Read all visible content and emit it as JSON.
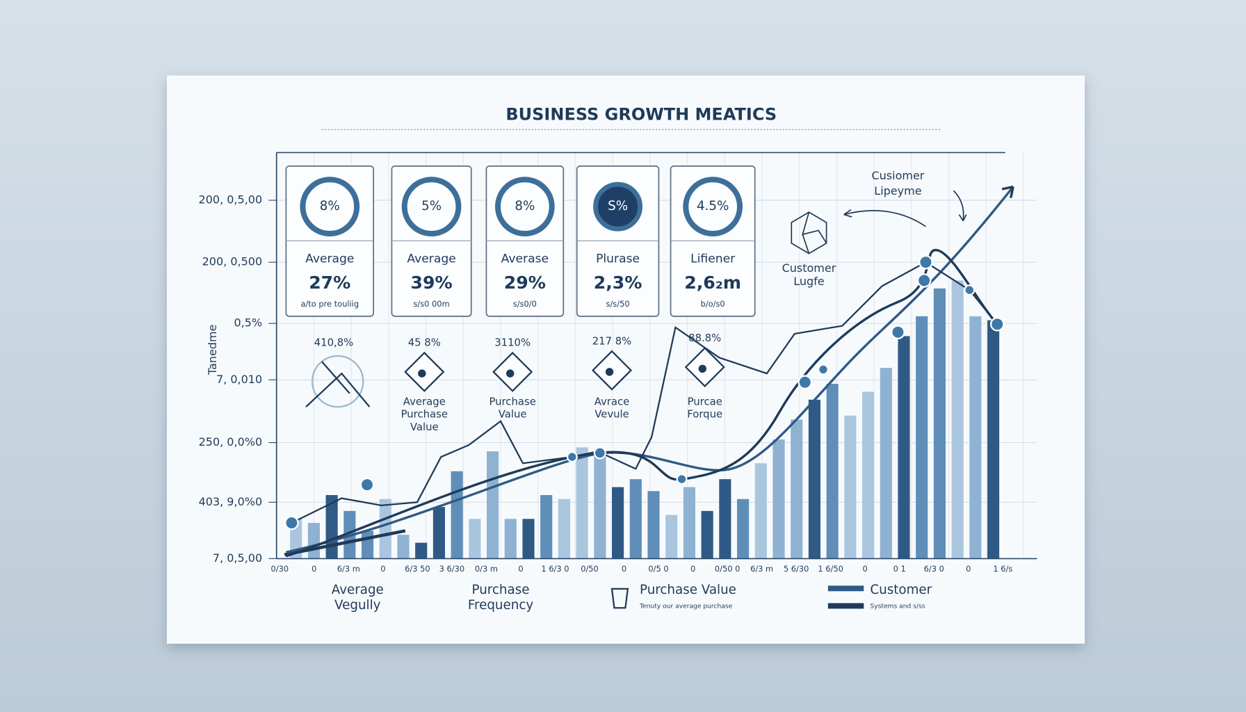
{
  "header": {
    "title": "BUSINESS GROWTH MEATICS"
  },
  "y_axis": {
    "title": "Tanedme",
    "ticks": [
      "200, 0,5,00",
      "200, 0,500",
      "0,5%",
      "7, 0,010",
      "250, 0,0%0",
      "403, 9,0%0",
      "7, 0,5,00"
    ]
  },
  "cards": [
    {
      "ring": "8%",
      "label": "Average",
      "value": "27%",
      "note": "a/to pre touliig"
    },
    {
      "ring": "5%",
      "label": "Average",
      "value": "39%",
      "note": "s/s0 00m"
    },
    {
      "ring": "8%",
      "label": "Averase",
      "value": "29%",
      "note": "s/s0/0"
    },
    {
      "ring": "S%",
      "label": "Plurase",
      "value": "2,3%",
      "note": "s/s/50"
    },
    {
      "ring": "4.5%",
      "label": "Lifiener",
      "value": "2,6₂m",
      "note": "b/o/s0"
    }
  ],
  "callouts": [
    {
      "value": "410,8%"
    },
    {
      "value": "45 8%",
      "lines": [
        "Average",
        "Purchase",
        "Value"
      ]
    },
    {
      "value": "3110%",
      "lines": [
        "Purchase",
        "Value"
      ]
    },
    {
      "value": "217 8%",
      "lines": [
        "Avrace",
        "Vevule"
      ]
    },
    {
      "value": "88.8%",
      "lines": [
        "Purcae",
        "Forque"
      ]
    }
  ],
  "customer_notes": [
    {
      "lines": [
        "Cusiomer",
        "Lipeyme"
      ]
    },
    {
      "lines": [
        "Customer",
        "Lugfe"
      ]
    }
  ],
  "x_axis": {
    "ticks": [
      "0/30",
      "0",
      "6/3 m",
      "0",
      "6/3 50",
      "3 6/30",
      "0/3 m",
      "0",
      "1 6/3 0",
      "0/50",
      "0",
      "0/5 0",
      "0",
      "0/50 0",
      "6/3 m",
      "5 6/30",
      "1 6/50",
      "0",
      "0 1",
      "6/3 0",
      "0",
      "1 6/s"
    ]
  },
  "legend": [
    {
      "lines": [
        "Average",
        "Vegully"
      ]
    },
    {
      "lines": [
        "Purchase",
        "Frequency"
      ]
    },
    {
      "lines": [
        "Purchase Value"
      ],
      "note": "Tenuty our average purchase"
    },
    {
      "lines": [
        "Customer"
      ],
      "note": "Systems and s/ss"
    }
  ]
}
